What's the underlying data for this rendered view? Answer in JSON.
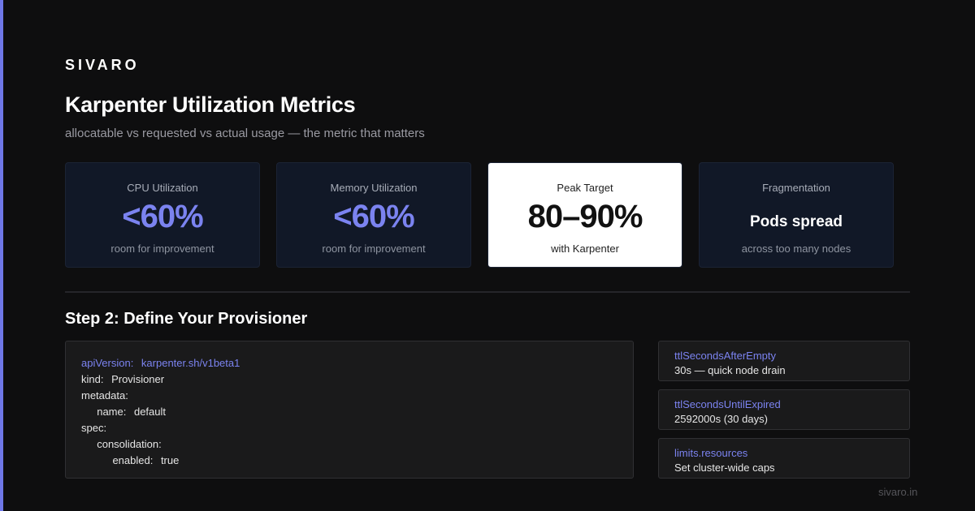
{
  "brand": "SIVARO",
  "header": {
    "title": "Karpenter Utilization Metrics",
    "subtitle": "allocatable vs requested vs actual usage — the metric that matters"
  },
  "cards": [
    {
      "label": "CPU Utilization",
      "value": "<60%",
      "note": "room for improvement"
    },
    {
      "label": "Memory Utilization",
      "value": "<60%",
      "note": "room for improvement"
    },
    {
      "label": "Peak Target",
      "value": "80–90%",
      "note": "with Karpenter"
    },
    {
      "label": "Fragmentation",
      "value": "Pods spread",
      "note": "across too many nodes"
    }
  ],
  "section": {
    "title": "Step 2: Define Your Provisioner",
    "code": [
      "apiVersion: karpenter.sh/v1beta1",
      "kind: Provisioner",
      "metadata:",
      "  name: default",
      "spec:",
      "  consolidation:",
      "    enabled: true"
    ],
    "settings": [
      {
        "key": "ttlSecondsAfterEmpty",
        "desc": "30s — quick node drain"
      },
      {
        "key": "ttlSecondsUntilExpired",
        "desc": "2592000s (30 days)"
      },
      {
        "key": "limits.resources",
        "desc": "Set cluster-wide caps"
      }
    ]
  },
  "footer": "sivaro.in"
}
